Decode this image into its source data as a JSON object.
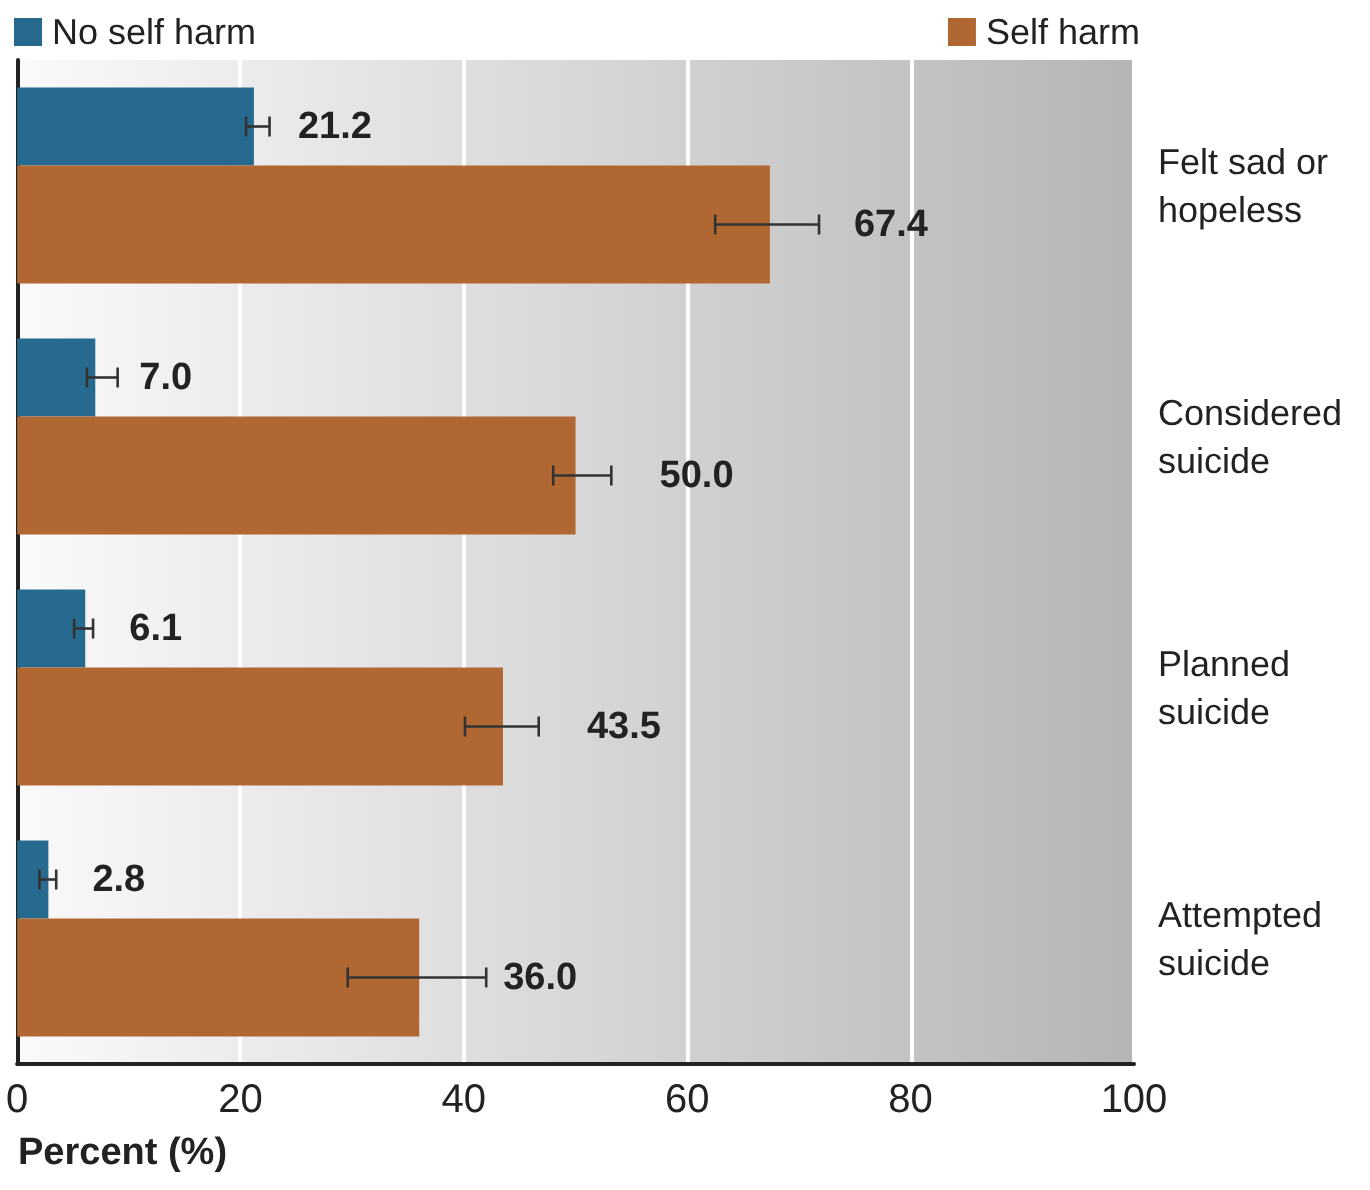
{
  "chart_data": {
    "type": "bar",
    "orientation": "horizontal",
    "xlabel": "Percent (%)",
    "categories": [
      "Felt sad or\nhopeless",
      "Considered\nsuicide",
      "Planned\nsuicide",
      "Attempted\nsuicide"
    ],
    "series": [
      {
        "name": "No self harm",
        "color": "#266a8f",
        "values": [
          21.2,
          7.0,
          6.1,
          2.8
        ],
        "value_labels": [
          "21.2",
          "7.0",
          "6.1",
          "2.8"
        ],
        "errors": [
          [
            20.5,
            22.6
          ],
          [
            6.25,
            9.0
          ],
          [
            5.1,
            6.8
          ],
          [
            2.0,
            3.5
          ]
        ]
      },
      {
        "name": "Self harm",
        "color": "#b16732",
        "values": [
          67.4,
          50.0,
          43.5,
          36.0
        ],
        "value_labels": [
          "67.4",
          "50.0",
          "43.5",
          "36.0"
        ],
        "errors": [
          [
            62.5,
            71.8
          ],
          [
            48.0,
            53.2
          ],
          [
            40.1,
            46.7
          ],
          [
            29.6,
            42.0
          ]
        ]
      }
    ],
    "xlim": [
      0,
      100
    ],
    "xticks": [
      0,
      20,
      40,
      60,
      80,
      100
    ],
    "grid": "x",
    "legend": "top"
  }
}
